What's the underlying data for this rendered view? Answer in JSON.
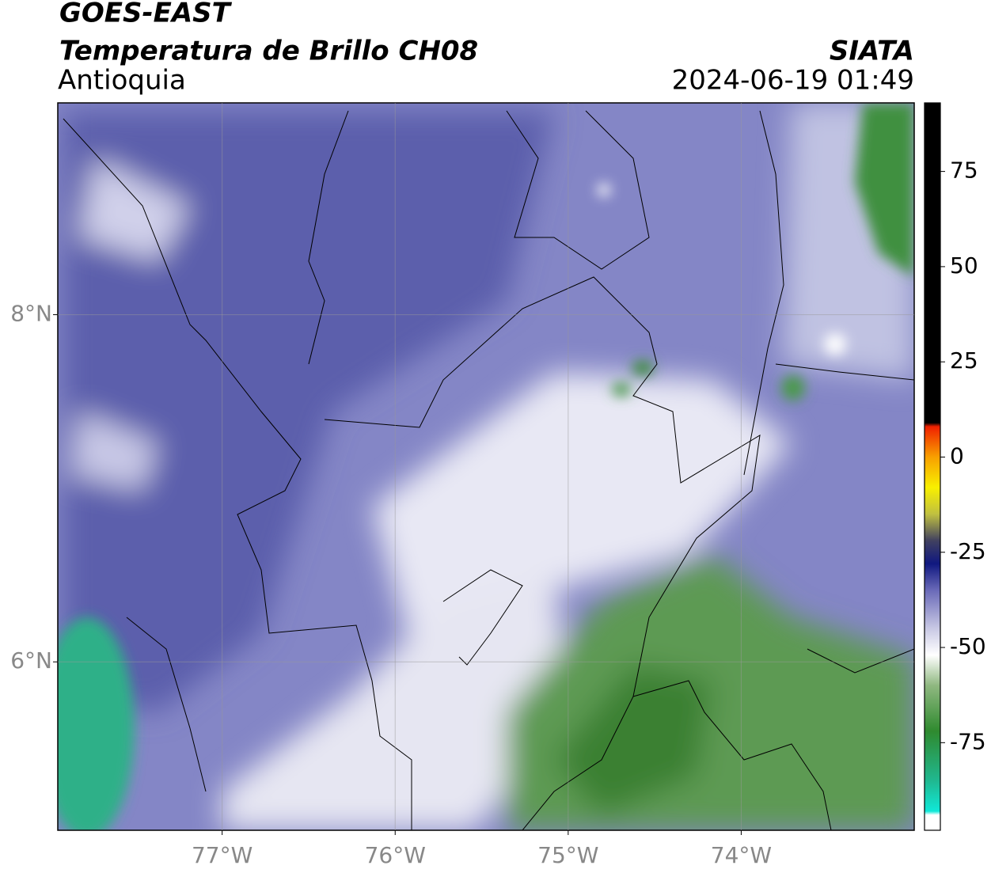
{
  "header": {
    "title": "GOES-EAST",
    "subtitle": "Temperatura de Brillo CH08",
    "region": "Antioquia",
    "source": "SIATA",
    "datetime": "2024-06-19 01:49"
  },
  "map": {
    "xlim": [
      -77.95,
      -73.0
    ],
    "ylim": [
      5.03,
      9.22
    ],
    "xticks": [
      {
        "value": -77,
        "label": "77°W"
      },
      {
        "value": -76,
        "label": "76°W"
      },
      {
        "value": -75,
        "label": "75°W"
      },
      {
        "value": -74,
        "label": "74°W"
      }
    ],
    "yticks": [
      {
        "value": 8,
        "label": "8°N"
      },
      {
        "value": 6,
        "label": "6°N"
      }
    ],
    "grid": true
  },
  "colorbar": {
    "lim": [
      -98,
      93
    ],
    "ticks": [
      75,
      50,
      25,
      0,
      -25,
      -50,
      -75
    ],
    "stops": [
      {
        "value": -98,
        "color": "#ffffff"
      },
      {
        "value": -94,
        "color": "#ffffff"
      },
      {
        "value": -93,
        "color": "#10e8d8"
      },
      {
        "value": -85,
        "color": "#20b890"
      },
      {
        "value": -72,
        "color": "#2f8a2f"
      },
      {
        "value": -60,
        "color": "#8fb880"
      },
      {
        "value": -52,
        "color": "#ffffff"
      },
      {
        "value": -45,
        "color": "#c8c8e4"
      },
      {
        "value": -35,
        "color": "#6a6ab8"
      },
      {
        "value": -28,
        "color": "#101880"
      },
      {
        "value": -22,
        "color": "#404060"
      },
      {
        "value": -15,
        "color": "#c0c040"
      },
      {
        "value": -8,
        "color": "#f8f000"
      },
      {
        "value": 0,
        "color": "#f8a000"
      },
      {
        "value": 8,
        "color": "#f02000"
      },
      {
        "value": 9,
        "color": "#000000"
      },
      {
        "value": 93,
        "color": "#000000"
      }
    ]
  }
}
